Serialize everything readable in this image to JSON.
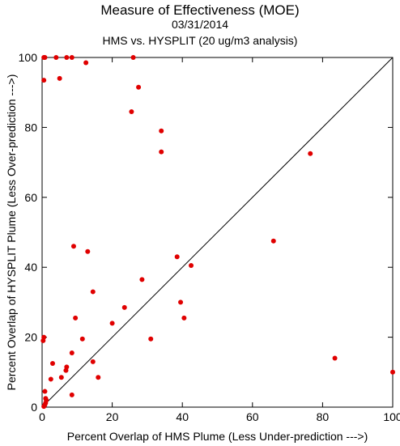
{
  "header": {
    "title": "Measure of Effectiveness (MOE)",
    "date": "03/31/2014",
    "subtitle": "HMS vs. HYSPLIT  (20 ug/m3 analysis)"
  },
  "chart_data": {
    "type": "scatter",
    "xlabel": "Percent Overlap of HMS Plume (Less Under-prediction --->)",
    "ylabel": "Percent Overlap of HYSPLIT Plume (Less Over-prediction --->)",
    "xlim": [
      0,
      100
    ],
    "ylim": [
      0,
      100
    ],
    "x_ticks": [
      0,
      20,
      40,
      60,
      80,
      100
    ],
    "y_ticks": [
      0,
      20,
      40,
      60,
      80,
      100
    ],
    "grid": false,
    "reference_line": "y = x",
    "point_color": "#e00000",
    "points": [
      {
        "x": 0.5,
        "y": 100
      },
      {
        "x": 0.8,
        "y": 100
      },
      {
        "x": 4,
        "y": 100
      },
      {
        "x": 7,
        "y": 100
      },
      {
        "x": 8.5,
        "y": 100
      },
      {
        "x": 26,
        "y": 100
      },
      {
        "x": 12.5,
        "y": 98.5
      },
      {
        "x": 0.5,
        "y": 93.5
      },
      {
        "x": 5,
        "y": 94
      },
      {
        "x": 27.5,
        "y": 91.5
      },
      {
        "x": 25.5,
        "y": 84.5
      },
      {
        "x": 34,
        "y": 79
      },
      {
        "x": 34,
        "y": 73
      },
      {
        "x": 76.5,
        "y": 72.5
      },
      {
        "x": 66,
        "y": 47.5
      },
      {
        "x": 9,
        "y": 46
      },
      {
        "x": 13,
        "y": 44.5
      },
      {
        "x": 38.5,
        "y": 43
      },
      {
        "x": 42.5,
        "y": 40.5
      },
      {
        "x": 28.5,
        "y": 36.5
      },
      {
        "x": 14.5,
        "y": 33
      },
      {
        "x": 39.5,
        "y": 30
      },
      {
        "x": 23.5,
        "y": 28.5
      },
      {
        "x": 9.5,
        "y": 25.5
      },
      {
        "x": 40.5,
        "y": 25.5
      },
      {
        "x": 20,
        "y": 24
      },
      {
        "x": 11.5,
        "y": 19.5
      },
      {
        "x": 31,
        "y": 19.5
      },
      {
        "x": 0.5,
        "y": 20
      },
      {
        "x": 0.3,
        "y": 19
      },
      {
        "x": 8.5,
        "y": 15.5
      },
      {
        "x": 14.5,
        "y": 13
      },
      {
        "x": 83.5,
        "y": 14
      },
      {
        "x": 3,
        "y": 12.5
      },
      {
        "x": 7,
        "y": 11.5
      },
      {
        "x": 6.8,
        "y": 10.5
      },
      {
        "x": 100,
        "y": 10
      },
      {
        "x": 5.5,
        "y": 8.5
      },
      {
        "x": 16,
        "y": 8.5
      },
      {
        "x": 2.5,
        "y": 8
      },
      {
        "x": 0.8,
        "y": 4.5
      },
      {
        "x": 8.5,
        "y": 3.5
      },
      {
        "x": 1,
        "y": 2.5
      },
      {
        "x": 1.2,
        "y": 2
      },
      {
        "x": 1,
        "y": 1.2
      },
      {
        "x": 0.8,
        "y": 0.7
      },
      {
        "x": 0.5,
        "y": 0.2
      }
    ]
  }
}
